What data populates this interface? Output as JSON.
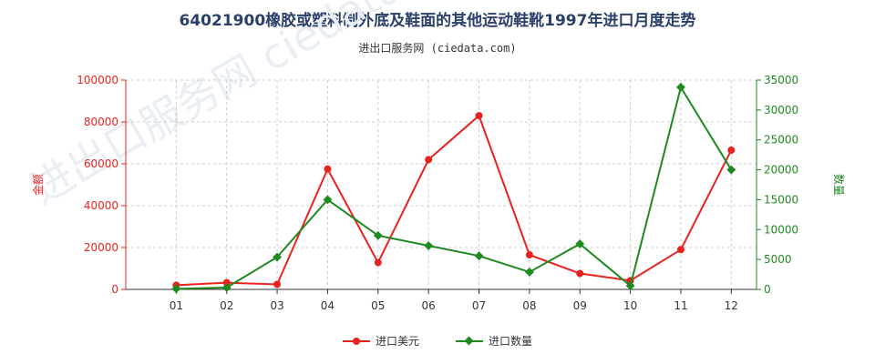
{
  "title": "64021900橡胶或塑料制外底及鞋面的其他运动鞋靴1997年进口月度走势",
  "subtitle": "进出口服务网 (ciedata.com)",
  "watermark": "进出口服务网 ciedata.com",
  "colors": {
    "amount": "#e8231f",
    "quantity": "#1f8a1f",
    "grid": "#cccccc",
    "axis": "#333333"
  },
  "chart_data": {
    "type": "line",
    "categories": [
      "01",
      "02",
      "03",
      "04",
      "05",
      "06",
      "07",
      "08",
      "09",
      "10",
      "11",
      "12"
    ],
    "left_axis": {
      "label": "金额",
      "ylim": [
        0,
        100000
      ],
      "ticks": [
        "0",
        "20000",
        "40000",
        "60000",
        "80000",
        "100000"
      ]
    },
    "right_axis": {
      "label": "数量",
      "ylim": [
        0,
        35000
      ],
      "ticks": [
        "0",
        "5000",
        "10000",
        "15000",
        "20000",
        "25000",
        "30000",
        "35000"
      ]
    },
    "series": [
      {
        "name": "进口美元",
        "axis": "left",
        "values": [
          2000,
          3200,
          2400,
          57500,
          12800,
          62000,
          83000,
          16500,
          7600,
          4200,
          19000,
          66500
        ]
      },
      {
        "name": "进口数量",
        "axis": "right",
        "values": [
          100,
          300,
          5400,
          15000,
          9000,
          7300,
          5600,
          2900,
          7600,
          600,
          33800,
          20000
        ]
      }
    ],
    "grid": true,
    "legend": "bottom-center"
  }
}
